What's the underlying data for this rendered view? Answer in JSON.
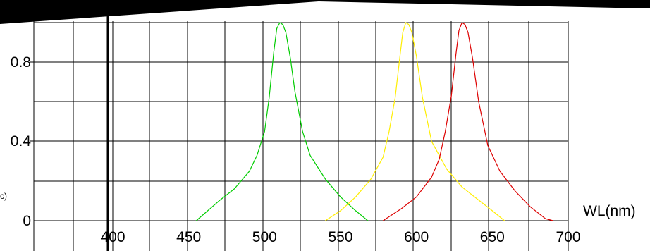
{
  "chart_data": {
    "type": "line",
    "xlabel": "WL(nm)",
    "ylabel_fragment": "c)",
    "xlim": [
      400,
      700
    ],
    "ylim": [
      0,
      1.0
    ],
    "x_ticks": [
      "400",
      "450",
      "500",
      "550",
      "600",
      "650",
      "700"
    ],
    "y_ticks": [
      "0",
      "0.4",
      "0.8"
    ],
    "grid": true,
    "series": [
      {
        "color": "#00cc00",
        "x": [
          455,
          470,
          480,
          490,
          495,
          500,
          503,
          506,
          508,
          510,
          512,
          514,
          517,
          520,
          525,
          530,
          540,
          550,
          560,
          568
        ],
        "y": [
          0.0,
          0.1,
          0.16,
          0.25,
          0.33,
          0.45,
          0.62,
          0.85,
          0.97,
          1.0,
          0.99,
          0.95,
          0.82,
          0.65,
          0.45,
          0.33,
          0.21,
          0.12,
          0.05,
          0.0
        ]
      },
      {
        "color": "#ffee00",
        "x": [
          540,
          550,
          560,
          570,
          578,
          582,
          586,
          589,
          591,
          593,
          595,
          597,
          600,
          604,
          610,
          620,
          630,
          640,
          650,
          658
        ],
        "y": [
          0.0,
          0.05,
          0.12,
          0.21,
          0.32,
          0.45,
          0.62,
          0.82,
          0.95,
          1.0,
          0.99,
          0.95,
          0.83,
          0.62,
          0.4,
          0.26,
          0.17,
          0.11,
          0.05,
          0.0
        ]
      },
      {
        "color": "#dd0000",
        "x": [
          578,
          590,
          600,
          610,
          615,
          619,
          623,
          626,
          628,
          630,
          632,
          634,
          637,
          641,
          647,
          655,
          665,
          675,
          685,
          690
        ],
        "y": [
          0.0,
          0.06,
          0.12,
          0.22,
          0.31,
          0.45,
          0.63,
          0.84,
          0.96,
          1.0,
          0.99,
          0.95,
          0.82,
          0.6,
          0.38,
          0.25,
          0.15,
          0.07,
          0.01,
          0.0
        ]
      }
    ]
  }
}
